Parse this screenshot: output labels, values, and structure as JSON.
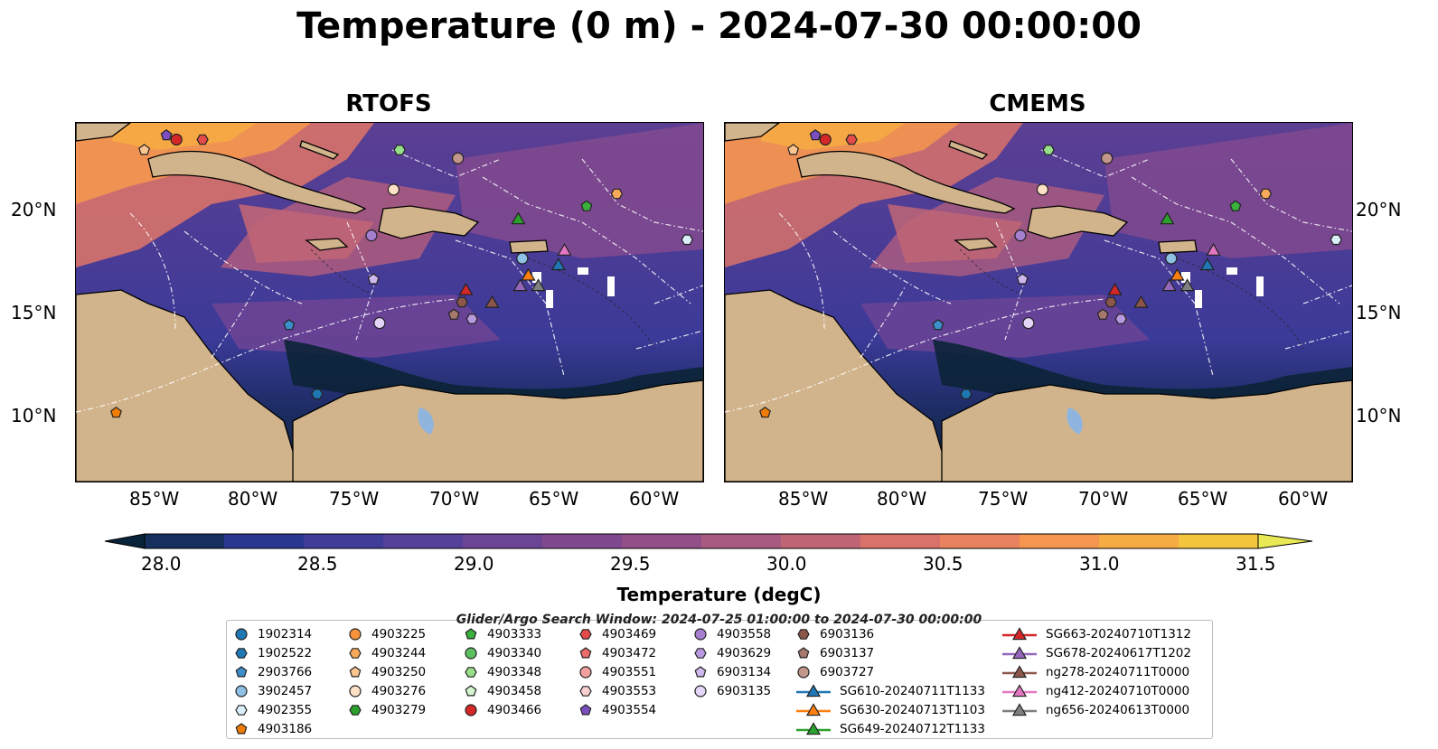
{
  "title": "Temperature (0 m) - 2024-07-30 00:00:00",
  "panels": [
    {
      "title": "RTOFS"
    },
    {
      "title": "CMEMS"
    }
  ],
  "lat_labels": [
    "20°N",
    "15°N",
    "10°N"
  ],
  "lon_labels": [
    "85°W",
    "80°W",
    "75°W",
    "70°W",
    "65°W",
    "60°W"
  ],
  "colorbar": {
    "label": "Temperature (degC)",
    "ticks": [
      "28.0",
      "28.5",
      "29.0",
      "29.5",
      "30.0",
      "30.5",
      "31.0",
      "31.5"
    ],
    "range": [
      28.0,
      31.5
    ],
    "colors": [
      "#09233a",
      "#16305e",
      "#2a3790",
      "#3f3c9a",
      "#55409a",
      "#6b4495",
      "#80498f",
      "#934f88",
      "#a95a80",
      "#c06575",
      "#d8726a",
      "#e9825e",
      "#f4964f",
      "#f6ab43",
      "#f3c53e",
      "#e9e855"
    ]
  },
  "search_window": "Glider/Argo Search Window: 2024-07-25 01:00:00 to 2024-07-30 00:00:00",
  "legend": [
    {
      "label": "1902314",
      "color": "#1f77b4",
      "marker": "circle"
    },
    {
      "label": "1902522",
      "color": "#1f77b4",
      "marker": "hexagon"
    },
    {
      "label": "2903766",
      "color": "#3d8fcc",
      "marker": "pentagon"
    },
    {
      "label": "3902457",
      "color": "#8fc1e6",
      "marker": "circle"
    },
    {
      "label": "4902355",
      "color": "#dceefa",
      "marker": "hexagon"
    },
    {
      "label": "4903186",
      "color": "#ef7d05",
      "marker": "pentagon"
    },
    {
      "label": "4903225",
      "color": "#f5923a",
      "marker": "circle"
    },
    {
      "label": "4903244",
      "color": "#f9a95a",
      "marker": "hexagon"
    },
    {
      "label": "4903250",
      "color": "#fbc58f",
      "marker": "pentagon"
    },
    {
      "label": "4903276",
      "color": "#fde0c5",
      "marker": "circle"
    },
    {
      "label": "4903279",
      "color": "#2ca02c",
      "marker": "hexagon"
    },
    {
      "label": "4903333",
      "color": "#39b13c",
      "marker": "pentagon"
    },
    {
      "label": "4903340",
      "color": "#5bc15e",
      "marker": "circle"
    },
    {
      "label": "4903348",
      "color": "#98df8a",
      "marker": "hexagon"
    },
    {
      "label": "4903458",
      "color": "#d4f5cf",
      "marker": "pentagon"
    },
    {
      "label": "4903466",
      "color": "#d62728",
      "marker": "circle"
    },
    {
      "label": "4903469",
      "color": "#e34a4a",
      "marker": "hexagon"
    },
    {
      "label": "4903472",
      "color": "#ec6b6b",
      "marker": "pentagon"
    },
    {
      "label": "4903551",
      "color": "#f4a0a0",
      "marker": "circle"
    },
    {
      "label": "4903553",
      "color": "#fbd0d0",
      "marker": "hexagon"
    },
    {
      "label": "4903554",
      "color": "#7b4fbf",
      "marker": "pentagon"
    },
    {
      "label": "4903558",
      "color": "#a77fd0",
      "marker": "circle"
    },
    {
      "label": "4903629",
      "color": "#b99ae0",
      "marker": "hexagon"
    },
    {
      "label": "6903134",
      "color": "#cfb8ee",
      "marker": "pentagon"
    },
    {
      "label": "6903135",
      "color": "#e5d5f8",
      "marker": "circle"
    },
    {
      "label": "6903136",
      "color": "#8c564b",
      "marker": "hexagon"
    },
    {
      "label": "6903137",
      "color": "#a7786d",
      "marker": "pentagon"
    },
    {
      "label": "6903727",
      "color": "#c2968a",
      "marker": "circle"
    },
    {
      "label": "SG610-20240711T1133",
      "color": "#1f77b4",
      "marker": "triangle-line"
    },
    {
      "label": "SG630-20240713T1103",
      "color": "#ff7f0e",
      "marker": "triangle-line"
    },
    {
      "label": "SG649-20240712T1133",
      "color": "#2ca02c",
      "marker": "triangle-line"
    },
    {
      "label": "SG663-20240710T1312",
      "color": "#d62728",
      "marker": "triangle-line"
    },
    {
      "label": "SG678-20240617T1202",
      "color": "#9467bd",
      "marker": "triangle-line"
    },
    {
      "label": "ng278-20240711T0000",
      "color": "#8c564b",
      "marker": "triangle-line"
    },
    {
      "label": "ng412-20240710T0000",
      "color": "#e377c2",
      "marker": "triangle-line"
    },
    {
      "label": "ng656-20240613T0000",
      "color": "#7f7f7f",
      "marker": "triangle-line"
    }
  ],
  "markers": [
    {
      "lon": -73.2,
      "lat": 21.0,
      "color": "#fde0c5",
      "shape": "circle"
    },
    {
      "lon": -74.3,
      "lat": 18.8,
      "color": "#a77fd0",
      "shape": "circle"
    },
    {
      "lon": -74.2,
      "lat": 16.7,
      "color": "#cfb8ee",
      "shape": "pentagon"
    },
    {
      "lon": -73.9,
      "lat": 14.6,
      "color": "#e5d5f8",
      "shape": "circle"
    },
    {
      "lon": -78.4,
      "lat": 14.5,
      "color": "#3d8fcc",
      "shape": "pentagon"
    },
    {
      "lon": -77.0,
      "lat": 11.2,
      "color": "#1f77b4",
      "shape": "hexagon"
    },
    {
      "lon": -87.0,
      "lat": 10.3,
      "color": "#ef7d05",
      "shape": "pentagon"
    },
    {
      "lon": -72.9,
      "lat": 22.9,
      "color": "#98df8a",
      "shape": "hexagon"
    },
    {
      "lon": -70.0,
      "lat": 22.5,
      "color": "#c2968a",
      "shape": "circle"
    },
    {
      "lon": -63.6,
      "lat": 20.2,
      "color": "#39b13c",
      "shape": "pentagon"
    },
    {
      "lon": -62.1,
      "lat": 20.8,
      "color": "#f9a95a",
      "shape": "hexagon"
    },
    {
      "lon": -58.6,
      "lat": 18.6,
      "color": "#dceefa",
      "shape": "hexagon"
    },
    {
      "lon": -66.8,
      "lat": 17.7,
      "color": "#8fc1e6",
      "shape": "circle"
    },
    {
      "lon": -69.8,
      "lat": 15.6,
      "color": "#8c564b",
      "shape": "hexagon"
    },
    {
      "lon": -70.2,
      "lat": 15.0,
      "color": "#a7786d",
      "shape": "pentagon"
    },
    {
      "lon": -69.3,
      "lat": 14.8,
      "color": "#b99ae0",
      "shape": "hexagon"
    },
    {
      "lon": -84.5,
      "lat": 23.6,
      "color": "#7b4fbf",
      "shape": "pentagon"
    },
    {
      "lon": -84.0,
      "lat": 23.4,
      "color": "#d62728",
      "shape": "circle"
    },
    {
      "lon": -82.7,
      "lat": 23.4,
      "color": "#e34a4a",
      "shape": "hexagon"
    },
    {
      "lon": -85.6,
      "lat": 22.9,
      "color": "#fbc58f",
      "shape": "pentagon"
    },
    {
      "lon": -69.6,
      "lat": 16.2,
      "color": "#d62728",
      "shape": "triangle"
    },
    {
      "lon": -68.3,
      "lat": 15.6,
      "color": "#8c564b",
      "shape": "triangle"
    },
    {
      "lon": -67.0,
      "lat": 19.6,
      "color": "#2ca02c",
      "shape": "triangle"
    },
    {
      "lon": -66.5,
      "lat": 16.9,
      "color": "#ff7f0e",
      "shape": "triangle"
    },
    {
      "lon": -66.9,
      "lat": 16.4,
      "color": "#9467bd",
      "shape": "triangle"
    },
    {
      "lon": -66.0,
      "lat": 16.4,
      "color": "#7f7f7f",
      "shape": "triangle"
    },
    {
      "lon": -65.0,
      "lat": 17.4,
      "color": "#1f77b4",
      "shape": "triangle"
    },
    {
      "lon": -64.7,
      "lat": 18.1,
      "color": "#e377c2",
      "shape": "triangle"
    }
  ]
}
